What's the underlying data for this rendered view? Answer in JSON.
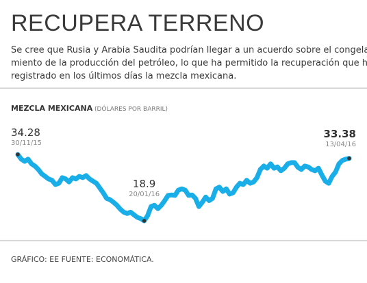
{
  "chart_data": {
    "type": "line",
    "headline": "RECUPERA TERRENO",
    "subtitle": [
      "Se cree que Rusia y Arabia Saudita podrían llegar a un acuerdo sobre el congela-",
      "miento de la producción del petróleo, lo que ha permitido la recuperación que ha",
      "registrado en los últimos días la mezcla mexicana."
    ],
    "title": "MEZCLA MEXICANA",
    "unit_label": "(DÓLARES POR BARRIL)",
    "source": "GRÁFICO: EE FUENTE: ECONOMÁTICA.",
    "color": "#1aaee8",
    "categories": [
      "30/11/15",
      null,
      null,
      null,
      null,
      null,
      null,
      null,
      null,
      null,
      null,
      null,
      null,
      null,
      null,
      null,
      null,
      null,
      null,
      null,
      null,
      null,
      null,
      null,
      null,
      null,
      null,
      null,
      null,
      null,
      null,
      null,
      null,
      null,
      null,
      null,
      null,
      "20/01/16",
      null,
      null,
      null,
      null,
      null,
      null,
      null,
      null,
      null,
      null,
      null,
      null,
      null,
      null,
      null,
      null,
      null,
      null,
      null,
      null,
      null,
      null,
      null,
      null,
      null,
      null,
      null,
      null,
      null,
      null,
      null,
      null,
      null,
      null,
      null,
      null,
      null,
      null,
      null,
      null,
      null,
      null,
      null,
      null,
      null,
      null,
      null,
      null,
      null,
      null,
      null,
      null,
      null,
      null,
      null,
      null,
      null,
      null,
      null,
      "13/04/16"
    ],
    "values": [
      34.28,
      33.2,
      32.7,
      33.2,
      32.1,
      31.6,
      30.8,
      29.8,
      29.2,
      28.6,
      28.3,
      27.3,
      27.6,
      28.9,
      28.6,
      27.9,
      28.9,
      28.6,
      29.2,
      28.9,
      29.4,
      28.6,
      28.1,
      27.6,
      26.5,
      25.4,
      24.1,
      23.8,
      23.2,
      22.5,
      21.6,
      20.9,
      20.6,
      20.9,
      20.3,
      19.7,
      19.4,
      18.9,
      20.1,
      22.2,
      22.5,
      21.7,
      22.5,
      23.6,
      24.8,
      24.9,
      24.8,
      26.0,
      26.3,
      26.0,
      24.8,
      24.9,
      24.1,
      22.2,
      23.2,
      24.4,
      23.6,
      24.1,
      26.3,
      26.7,
      25.7,
      26.3,
      25.1,
      25.4,
      26.7,
      27.6,
      27.3,
      28.3,
      27.6,
      27.9,
      28.9,
      30.8,
      31.6,
      31.1,
      32.1,
      31.1,
      31.4,
      30.5,
      31.1,
      32.1,
      32.4,
      32.4,
      31.3,
      30.8,
      31.6,
      31.4,
      30.8,
      30.5,
      31.1,
      29.5,
      28.1,
      27.6,
      29.2,
      30.2,
      32.1,
      32.9,
      33.2,
      33.38
    ]
  }
}
